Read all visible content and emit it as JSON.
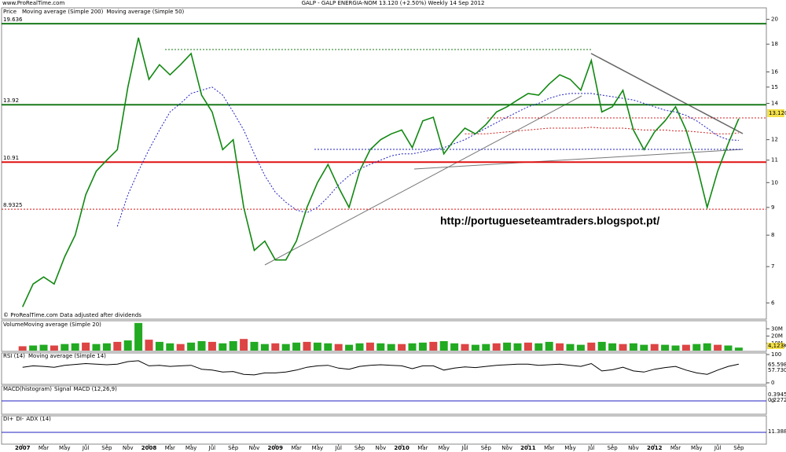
{
  "chart_data": {
    "type": "line",
    "source": "www.ProRealTime.com",
    "title": "GALP - GALP ENERGIA-NOM    13.120 (+2.50%)    Weekly 14 Sep 2012",
    "footnote": "© ProRealTime.com  Data adjusted after dividends",
    "watermark": "http://portugueseteamtraders.blogspot.pt/",
    "legend_title": "Price",
    "last_label": "13.120",
    "log_scale": true,
    "ylim": [
      5.6,
      21
    ],
    "yticks": [
      6,
      7,
      8,
      9,
      10,
      11,
      12,
      14,
      15,
      16,
      18,
      20
    ],
    "levels": [
      {
        "value": 19.636,
        "color": "#1a7a1a"
      },
      {
        "value": 13.92,
        "color": "#1a7a1a"
      },
      {
        "value": 10.91,
        "color": "#e01010"
      },
      {
        "value": 8.9325,
        "color": "#e01010"
      }
    ],
    "x": [
      "2007-01",
      "2007-02",
      "2007-03",
      "2007-04",
      "2007-05",
      "2007-06",
      "2007-07",
      "2007-08",
      "2007-09",
      "2007-10",
      "2007-11",
      "2007-12",
      "2008-01",
      "2008-02",
      "2008-03",
      "2008-04",
      "2008-05",
      "2008-06",
      "2008-07",
      "2008-08",
      "2008-09",
      "2008-10",
      "2008-11",
      "2008-12",
      "2009-01",
      "2009-02",
      "2009-03",
      "2009-04",
      "2009-05",
      "2009-06",
      "2009-07",
      "2009-08",
      "2009-09",
      "2009-10",
      "2009-11",
      "2009-12",
      "2010-01",
      "2010-02",
      "2010-03",
      "2010-04",
      "2010-05",
      "2010-06",
      "2010-07",
      "2010-08",
      "2010-09",
      "2010-10",
      "2010-11",
      "2010-12",
      "2011-01",
      "2011-02",
      "2011-03",
      "2011-04",
      "2011-05",
      "2011-06",
      "2011-07",
      "2011-08",
      "2011-09",
      "2011-10",
      "2011-11",
      "2011-12",
      "2012-01",
      "2012-02",
      "2012-03",
      "2012-04",
      "2012-05",
      "2012-06",
      "2012-07",
      "2012-08",
      "2012-09"
    ],
    "xticks": [
      {
        "value": "2007-01",
        "label": "2007"
      },
      {
        "value": "2007-03",
        "label": "Mar"
      },
      {
        "value": "2007-05",
        "label": "May"
      },
      {
        "value": "2007-07",
        "label": "Jul"
      },
      {
        "value": "2007-09",
        "label": "Sep"
      },
      {
        "value": "2007-11",
        "label": "Nov"
      },
      {
        "value": "2008-01",
        "label": "2008"
      },
      {
        "value": "2008-03",
        "label": "Mar"
      },
      {
        "value": "2008-05",
        "label": "May"
      },
      {
        "value": "2008-07",
        "label": "Jul"
      },
      {
        "value": "2008-09",
        "label": "Sep"
      },
      {
        "value": "2008-11",
        "label": "Nov"
      },
      {
        "value": "2009-01",
        "label": "2009"
      },
      {
        "value": "2009-03",
        "label": "Mar"
      },
      {
        "value": "2009-05",
        "label": "May"
      },
      {
        "value": "2009-07",
        "label": "Jul"
      },
      {
        "value": "2009-09",
        "label": "Sep"
      },
      {
        "value": "2009-11",
        "label": "Nov"
      },
      {
        "value": "2010-01",
        "label": "2010"
      },
      {
        "value": "2010-03",
        "label": "Mar"
      },
      {
        "value": "2010-05",
        "label": "May"
      },
      {
        "value": "2010-07",
        "label": "Jul"
      },
      {
        "value": "2010-09",
        "label": "Sep"
      },
      {
        "value": "2010-11",
        "label": "Nov"
      },
      {
        "value": "2011-01",
        "label": "2011"
      },
      {
        "value": "2011-03",
        "label": "Mar"
      },
      {
        "value": "2011-05",
        "label": "May"
      },
      {
        "value": "2011-07",
        "label": "Jul"
      },
      {
        "value": "2011-09",
        "label": "Sep"
      },
      {
        "value": "2011-11",
        "label": "Nov"
      },
      {
        "value": "2012-01",
        "label": "2012"
      },
      {
        "value": "2012-03",
        "label": "Mar"
      },
      {
        "value": "2012-05",
        "label": "May"
      },
      {
        "value": "2012-07",
        "label": "Jul"
      },
      {
        "value": "2012-09",
        "label": "Sep"
      }
    ],
    "series": [
      {
        "name": "Moving average (Simple 200)",
        "color": "#d02020",
        "values": [
          null,
          null,
          null,
          null,
          null,
          null,
          null,
          null,
          null,
          null,
          null,
          null,
          null,
          null,
          null,
          null,
          null,
          null,
          null,
          null,
          null,
          null,
          null,
          null,
          null,
          null,
          null,
          null,
          null,
          null,
          null,
          null,
          null,
          null,
          null,
          null,
          null,
          null,
          null,
          null,
          null,
          null,
          12.3,
          12.3,
          12.3,
          12.35,
          12.4,
          12.45,
          12.5,
          12.55,
          12.6,
          12.6,
          12.6,
          12.6,
          12.65,
          12.6,
          12.6,
          12.6,
          12.55,
          12.5,
          12.5,
          12.5,
          12.45,
          12.45,
          12.4,
          12.35,
          12.3,
          12.3,
          12.35
        ]
      },
      {
        "name": "Moving average (Simple 50)",
        "color": "#2020c0",
        "values": [
          null,
          null,
          null,
          null,
          null,
          null,
          null,
          null,
          null,
          8.3,
          9.5,
          10.5,
          11.5,
          12.5,
          13.5,
          14.0,
          14.6,
          14.8,
          15.0,
          14.5,
          13.5,
          12.5,
          11.3,
          10.3,
          9.6,
          9.2,
          8.9,
          8.8,
          9.0,
          9.4,
          9.9,
          10.3,
          10.6,
          10.8,
          11.0,
          11.2,
          11.3,
          11.3,
          11.4,
          11.5,
          11.6,
          11.8,
          12.0,
          12.3,
          12.6,
          12.9,
          13.2,
          13.5,
          13.8,
          14.0,
          14.3,
          14.5,
          14.6,
          14.6,
          14.6,
          14.5,
          14.4,
          14.3,
          14.2,
          14.0,
          13.8,
          13.6,
          13.5,
          13.3,
          13.0,
          12.6,
          12.2,
          12.0,
          11.961
        ]
      },
      {
        "name": "Price",
        "color": "#118811",
        "values": [
          5.9,
          6.5,
          6.7,
          6.5,
          7.3,
          8.0,
          9.5,
          10.5,
          11.0,
          11.5,
          15.0,
          18.5,
          15.5,
          16.5,
          15.8,
          16.5,
          17.3,
          14.5,
          13.5,
          11.5,
          12.0,
          9.0,
          7.5,
          7.8,
          7.2,
          7.2,
          7.8,
          9.0,
          10.0,
          10.8,
          9.8,
          9.0,
          10.5,
          11.5,
          12.0,
          12.3,
          12.5,
          11.6,
          13.0,
          13.2,
          11.3,
          12.0,
          12.6,
          12.3,
          12.8,
          13.5,
          13.8,
          14.2,
          14.6,
          14.5,
          15.2,
          15.8,
          15.5,
          14.8,
          16.8,
          13.5,
          13.8,
          14.8,
          12.5,
          11.5,
          12.4,
          13.0,
          13.8,
          12.5,
          10.8,
          9.0,
          10.5,
          11.8,
          13.12
        ]
      }
    ],
    "volume": {
      "name": "Volume",
      "ma": "Moving average (Simple 20)",
      "color": "#22aa22",
      "last": "4,123K",
      "ylim": [
        0,
        40000000
      ],
      "yticks": [
        {
          "value": 10000000,
          "label": "10M"
        },
        {
          "value": 20000000,
          "label": "20M"
        },
        {
          "value": 30000000,
          "label": "30M"
        }
      ],
      "values": [
        6000000,
        7000000,
        8000000,
        7000000,
        9000000,
        10000000,
        11000000,
        9000000,
        10000000,
        12000000,
        14000000,
        38000000,
        15000000,
        12000000,
        10000000,
        9000000,
        11000000,
        13000000,
        12000000,
        10000000,
        13000000,
        16000000,
        12000000,
        9000000,
        10000000,
        9000000,
        11000000,
        12000000,
        11000000,
        10000000,
        9000000,
        8000000,
        10000000,
        11000000,
        10000000,
        9000000,
        9000000,
        10000000,
        11000000,
        12000000,
        13000000,
        10000000,
        9000000,
        8000000,
        9000000,
        10000000,
        11000000,
        10000000,
        11000000,
        10000000,
        12000000,
        10000000,
        9000000,
        8000000,
        11000000,
        12000000,
        10000000,
        9000000,
        10000000,
        8000000,
        9000000,
        8000000,
        7000000,
        8000000,
        9000000,
        10000000,
        8000000,
        7000000,
        4123000
      ]
    },
    "rsi": {
      "name": "RSI (14)",
      "ma": "Moving average (Simple 14)",
      "color": "#000000",
      "ylim": [
        0,
        100
      ],
      "yticks": [
        0,
        100
      ],
      "last": [
        "65.598",
        "57.730"
      ],
      "values": [
        55,
        60,
        58,
        55,
        62,
        65,
        68,
        66,
        64,
        66,
        75,
        78,
        60,
        62,
        58,
        60,
        62,
        48,
        45,
        38,
        40,
        30,
        28,
        35,
        35,
        38,
        45,
        55,
        60,
        62,
        52,
        48,
        58,
        62,
        64,
        62,
        60,
        50,
        60,
        60,
        45,
        52,
        56,
        54,
        58,
        62,
        64,
        66,
        66,
        62,
        64,
        66,
        62,
        58,
        68,
        42,
        46,
        55,
        42,
        38,
        48,
        54,
        58,
        45,
        35,
        30,
        45,
        58,
        66
      ]
    },
    "macd": {
      "name": "MACD(histogram)",
      "signal": "Signal",
      "line": "MACD (12,26,9)",
      "yticks": [
        0
      ],
      "last": [
        "0.3945",
        "0.2272"
      ]
    },
    "dmi": {
      "plus": "DI+",
      "minus": "DI-",
      "adx": "ADX (14)",
      "last": "11.388"
    }
  }
}
